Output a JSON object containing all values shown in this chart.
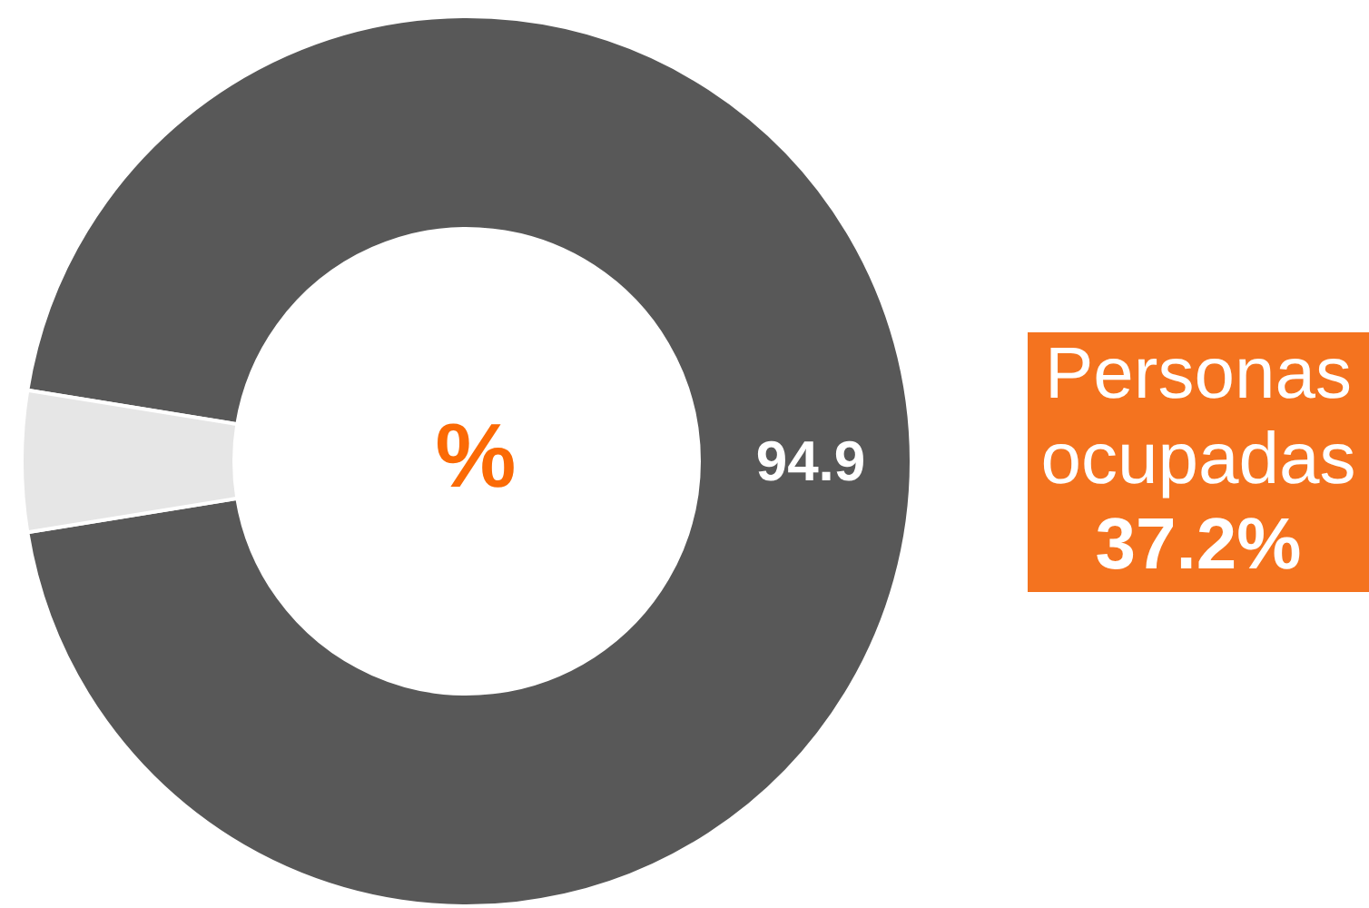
{
  "chart_data": {
    "type": "donut",
    "categories": [
      null,
      null
    ],
    "values": [
      94.9,
      5.1
    ],
    "colors": [
      "#585858",
      "#e6e6e6"
    ],
    "value_labels": [
      "94.9",
      null
    ],
    "annotations": [
      "%",
      "Personas ocupadas",
      "37.2%"
    ]
  }
}
